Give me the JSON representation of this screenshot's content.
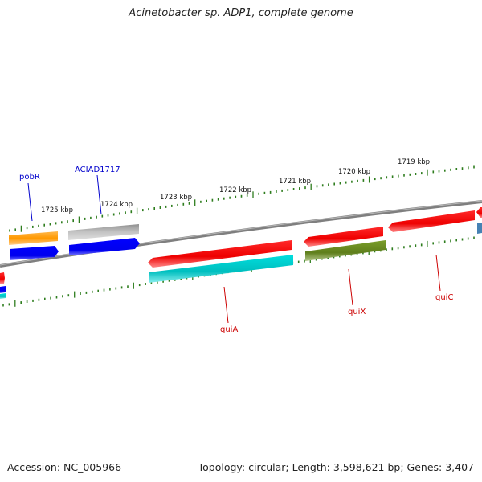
{
  "title": "Acinetobacter sp. ADP1, complete genome",
  "footer": {
    "accession": "Accession: NC_005966",
    "topology": "Topology: circular; Length: 3,598,621 bp; Genes: 3,407"
  },
  "kbp_labels": [
    "1725 kbp",
    "1724 kbp",
    "1723 kbp",
    "1722 kbp",
    "1721 kbp",
    "1720 kbp",
    "1719 kbp"
  ],
  "gene_labels": {
    "pobR": "pobR",
    "aciad1717": "ACIAD1717",
    "quiA": "quiA",
    "quiX": "quiX",
    "quiC": "quiC"
  },
  "colors": {
    "backbone": "#808080",
    "tick": "#2e7d1e",
    "orange": "#ff9900",
    "gray": "#b0b0b0",
    "blue": "#0000ee",
    "red": "#ee0000",
    "cyan": "#00c8c8",
    "olive": "#6b8e23",
    "steel": "#4682b4",
    "label_blue": "#0000cc",
    "label_red": "#cc0000"
  }
}
